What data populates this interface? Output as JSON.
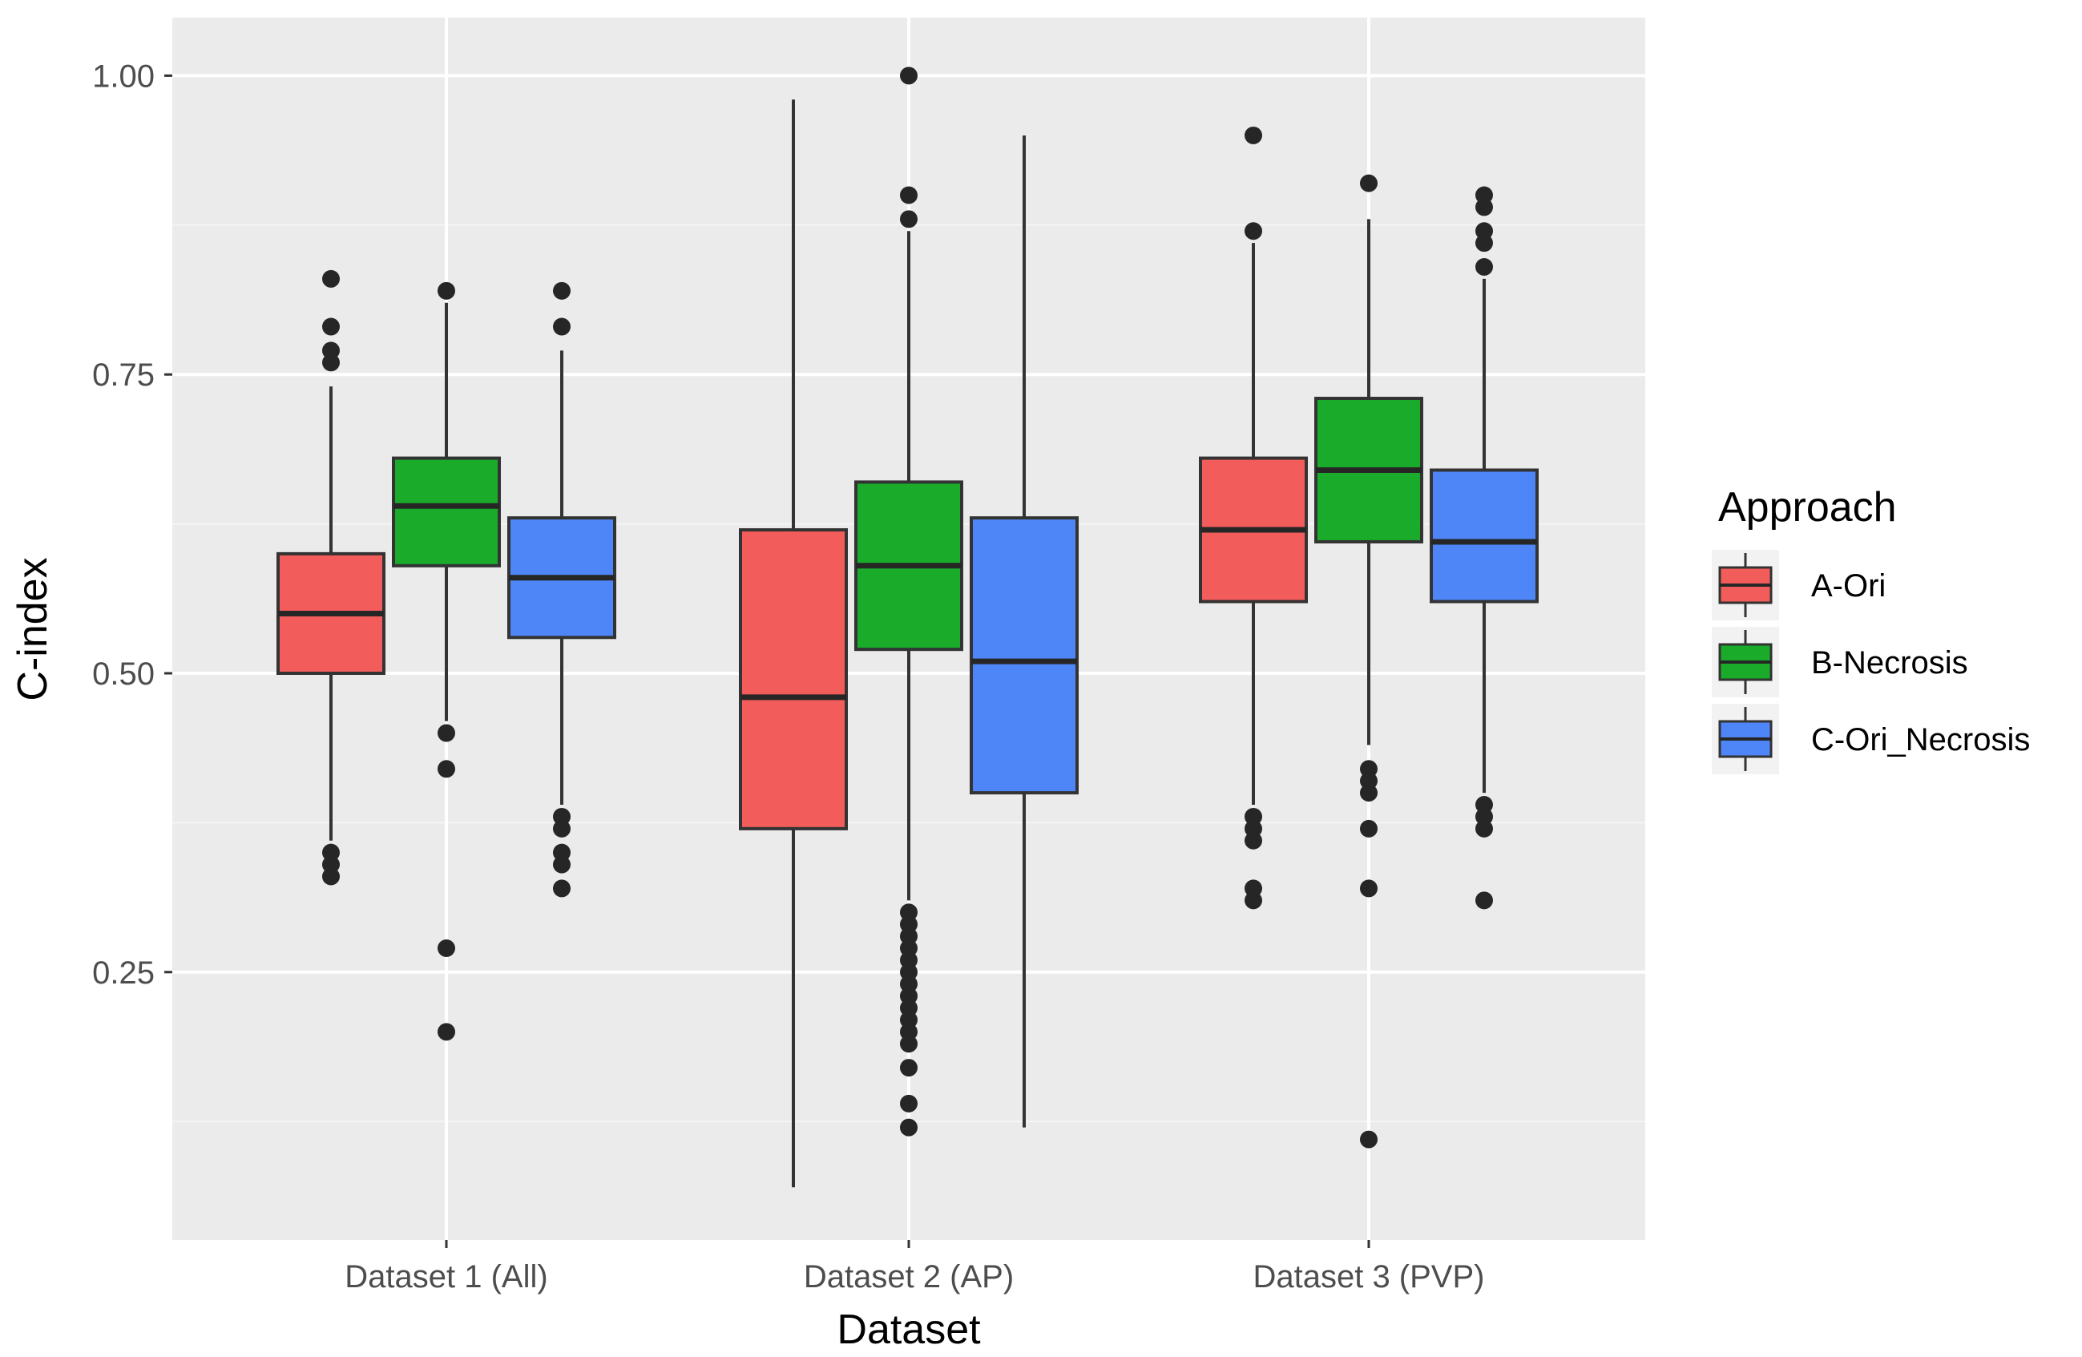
{
  "chart_data": {
    "type": "boxplot",
    "title": "",
    "xlabel": "Dataset",
    "ylabel": "C-index",
    "ylim": [
      0.03,
      1.05
    ],
    "yticks": [
      0.25,
      0.5,
      0.75,
      1.0
    ],
    "ytick_labels": [
      "0.25",
      "0.50",
      "0.75",
      "1.00"
    ],
    "grid": true,
    "legend_position": "right",
    "legend_title": "Approach",
    "categories": [
      "Dataset 1 (All)",
      "Dataset 2 (AP)",
      "Dataset 3 (PVP)"
    ],
    "series": [
      {
        "name": "A-Ori",
        "color": "#F25C5A",
        "boxes": [
          {
            "whisker_low": 0.36,
            "q1": 0.5,
            "median": 0.55,
            "q3": 0.6,
            "whisker_high": 0.74,
            "outliers": [
              0.83,
              0.79,
              0.77,
              0.76,
              0.35,
              0.34,
              0.33
            ]
          },
          {
            "whisker_low": 0.07,
            "q1": 0.37,
            "median": 0.48,
            "q3": 0.62,
            "whisker_high": 0.98,
            "outliers": []
          },
          {
            "whisker_low": 0.39,
            "q1": 0.56,
            "median": 0.62,
            "q3": 0.68,
            "whisker_high": 0.86,
            "outliers": [
              0.95,
              0.87,
              0.38,
              0.37,
              0.36,
              0.32,
              0.31
            ]
          }
        ]
      },
      {
        "name": "B-Necrosis",
        "color": "#1AAB2B",
        "boxes": [
          {
            "whisker_low": 0.46,
            "q1": 0.59,
            "median": 0.64,
            "q3": 0.68,
            "whisker_high": 0.81,
            "outliers": [
              0.82,
              0.45,
              0.42,
              0.27,
              0.2
            ]
          },
          {
            "whisker_low": 0.31,
            "q1": 0.52,
            "median": 0.59,
            "q3": 0.66,
            "whisker_high": 0.87,
            "outliers": [
              1.0,
              0.9,
              0.88,
              0.3,
              0.29,
              0.28,
              0.27,
              0.26,
              0.25,
              0.24,
              0.23,
              0.22,
              0.21,
              0.2,
              0.19,
              0.17,
              0.14,
              0.12
            ]
          },
          {
            "whisker_low": 0.44,
            "q1": 0.61,
            "median": 0.67,
            "q3": 0.73,
            "whisker_high": 0.88,
            "outliers": [
              0.91,
              0.42,
              0.41,
              0.4,
              0.37,
              0.32,
              0.11
            ]
          }
        ]
      },
      {
        "name": "C-Ori_Necrosis",
        "color": "#4F86F7",
        "boxes": [
          {
            "whisker_low": 0.39,
            "q1": 0.53,
            "median": 0.58,
            "q3": 0.63,
            "whisker_high": 0.77,
            "outliers": [
              0.82,
              0.79,
              0.38,
              0.37,
              0.35,
              0.34,
              0.32
            ]
          },
          {
            "whisker_low": 0.12,
            "q1": 0.4,
            "median": 0.51,
            "q3": 0.63,
            "whisker_high": 0.95,
            "outliers": []
          },
          {
            "whisker_low": 0.4,
            "q1": 0.56,
            "median": 0.61,
            "q3": 0.67,
            "whisker_high": 0.83,
            "outliers": [
              0.9,
              0.89,
              0.87,
              0.86,
              0.84,
              0.39,
              0.38,
              0.37,
              0.31
            ]
          }
        ]
      }
    ]
  }
}
